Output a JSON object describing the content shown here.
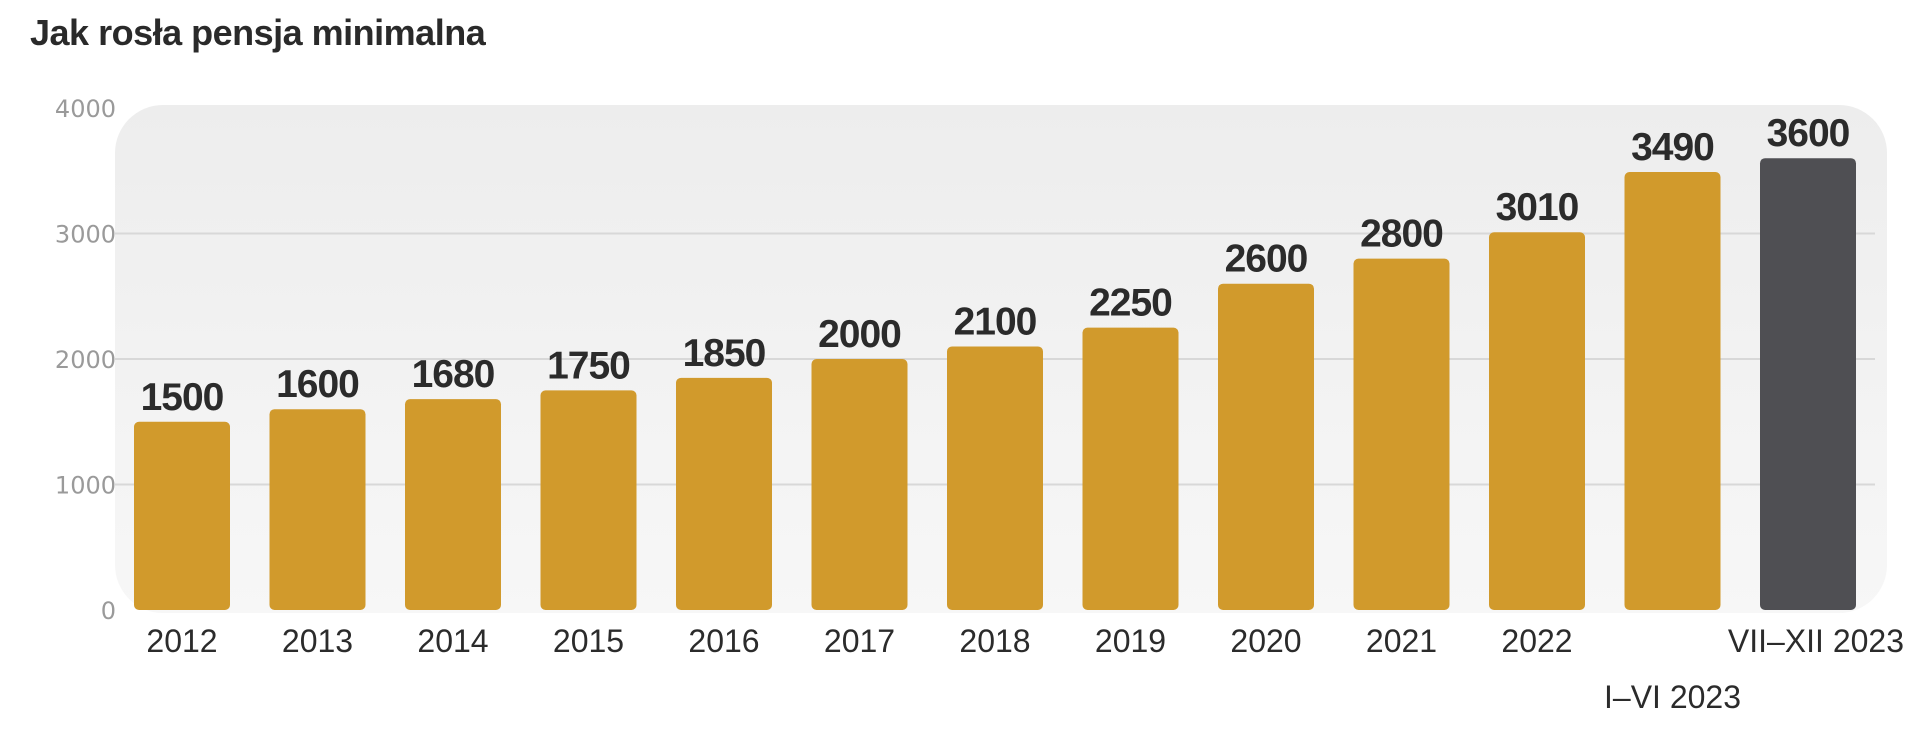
{
  "chart_data": {
    "type": "bar",
    "title": "Jak rosła pensja minimalna",
    "xlabel": "",
    "ylabel": "",
    "ylim": [
      0,
      4000
    ],
    "yticks": [
      "0",
      "1000",
      "2000",
      "3000",
      "4000"
    ],
    "grid": true,
    "categories": [
      "2012",
      "2013",
      "2014",
      "2015",
      "2016",
      "2017",
      "2018",
      "2019",
      "2020",
      "2021",
      "2022",
      "I–VI 2023",
      "VII–XII 2023"
    ],
    "values": [
      1500,
      1600,
      1680,
      1750,
      1850,
      2000,
      2100,
      2250,
      2600,
      2800,
      3010,
      3490,
      3600
    ],
    "data_labels": [
      "1500",
      "1600",
      "1680",
      "1750",
      "1850",
      "2000",
      "2100",
      "2250",
      "2600",
      "2800",
      "3010",
      "3490",
      "3600"
    ],
    "colors": {
      "default": "#d19a2c",
      "highlight": "#4f4f53",
      "plot_background": "#f2f2f2",
      "grid": "#d8d8d8"
    },
    "highlight_index": 12
  }
}
